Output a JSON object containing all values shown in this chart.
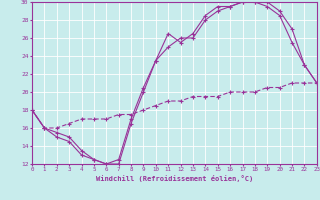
{
  "xlabel": "Windchill (Refroidissement éolien,°C)",
  "bg_color": "#c8ecec",
  "line_color": "#993399",
  "xlim": [
    0,
    23
  ],
  "ylim": [
    12,
    30
  ],
  "xticks": [
    0,
    1,
    2,
    3,
    4,
    5,
    6,
    7,
    8,
    9,
    10,
    11,
    12,
    13,
    14,
    15,
    16,
    17,
    18,
    19,
    20,
    21,
    22,
    23
  ],
  "yticks": [
    12,
    14,
    16,
    18,
    20,
    22,
    24,
    26,
    28,
    30
  ],
  "line1_x": [
    0,
    1,
    2,
    3,
    4,
    5,
    6,
    7,
    8,
    9,
    10,
    11,
    12,
    13,
    14,
    15,
    16,
    17,
    18,
    19,
    20,
    21,
    22,
    23
  ],
  "line1_y": [
    18,
    16,
    15.5,
    15,
    13.5,
    12.5,
    12.0,
    12.5,
    17,
    20.5,
    23.5,
    26.5,
    25.5,
    26.5,
    28.5,
    29.5,
    29.5,
    30,
    30,
    30,
    29,
    27,
    23,
    21
  ],
  "line2_x": [
    0,
    1,
    2,
    3,
    4,
    5,
    6,
    7,
    8,
    9,
    10,
    11,
    12,
    13,
    14,
    15,
    16,
    17,
    18,
    19,
    20,
    21,
    22,
    23
  ],
  "line2_y": [
    18,
    16,
    15,
    14.5,
    13,
    12.5,
    12.0,
    12.0,
    16.5,
    20,
    23.5,
    25,
    26,
    26,
    28,
    29,
    29.5,
    30,
    30,
    29.5,
    28.5,
    25.5,
    23,
    21
  ],
  "line3_x": [
    0,
    1,
    2,
    3,
    4,
    5,
    6,
    7,
    8,
    9,
    10,
    11,
    12,
    13,
    14,
    15,
    16,
    17,
    18,
    19,
    20,
    21,
    22,
    23
  ],
  "line3_y": [
    18,
    16,
    16,
    16.5,
    17,
    17,
    17,
    17.5,
    17.5,
    18,
    18.5,
    19,
    19,
    19.5,
    19.5,
    19.5,
    20,
    20,
    20,
    20.5,
    20.5,
    21,
    21,
    21
  ]
}
